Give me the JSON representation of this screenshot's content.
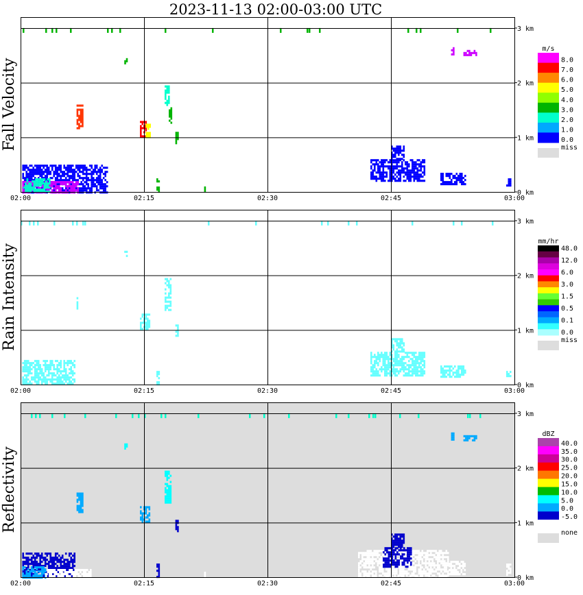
{
  "chart_data": {
    "type": "heatmap",
    "title": "2023-11-13  02:00-03:00 UTC",
    "x_axis": {
      "range": [
        "02:00",
        "03:00"
      ],
      "ticks": [
        "02:00",
        "02:15",
        "02:30",
        "02:45",
        "03:00"
      ]
    },
    "y_axis": {
      "range_km": [
        0,
        3.2
      ],
      "ticks": [
        "0 km",
        "1 km",
        "2 km",
        "3 km"
      ]
    },
    "panels": [
      {
        "name": "fall-velocity",
        "ylabel": "Fall Velocity",
        "unit": "m/s",
        "background": "#ffffff",
        "colorbar": [
          {
            "label": "8.0",
            "color": "#ff00ff"
          },
          {
            "label": "7.0",
            "color": "#ff0000"
          },
          {
            "label": "6.0",
            "color": "#ff8800"
          },
          {
            "label": "5.0",
            "color": "#ffff00"
          },
          {
            "label": "4.0",
            "color": "#90ff00"
          },
          {
            "label": "3.0",
            "color": "#00b400"
          },
          {
            "label": "2.0",
            "color": "#00ffcc"
          },
          {
            "label": "1.0",
            "color": "#00a8ff"
          },
          {
            "label": "0.0",
            "color": "#0000ff"
          }
        ],
        "miss_label": "miss",
        "echoes": [
          {
            "t0": 0.2,
            "t1": 10.6,
            "h0": 0.0,
            "h1": 0.5,
            "color": "#0000ff"
          },
          {
            "t0": 0.2,
            "t1": 7.0,
            "h0": 0.0,
            "h1": 0.2,
            "color": "#cc00ff"
          },
          {
            "t0": 0.3,
            "t1": 3.5,
            "h0": 0.0,
            "h1": 0.25,
            "color": "#00ffcc"
          },
          {
            "t0": 6.8,
            "t1": 7.5,
            "h0": 1.15,
            "h1": 1.6,
            "color": "#ff3300"
          },
          {
            "t0": 12.6,
            "t1": 12.9,
            "h0": 2.35,
            "h1": 2.45,
            "color": "#00b400"
          },
          {
            "t0": 14.5,
            "t1": 15.2,
            "h0": 1.0,
            "h1": 1.3,
            "color": "#ff0000"
          },
          {
            "t0": 15.2,
            "t1": 15.8,
            "h0": 1.0,
            "h1": 1.25,
            "color": "#ffff00"
          },
          {
            "t0": 16.5,
            "t1": 16.8,
            "h0": 0.0,
            "h1": 0.25,
            "color": "#00b400"
          },
          {
            "t0": 17.5,
            "t1": 18.1,
            "h0": 1.6,
            "h1": 1.95,
            "color": "#00ffcc"
          },
          {
            "t0": 18.0,
            "t1": 18.3,
            "h0": 1.25,
            "h1": 1.55,
            "color": "#00b400"
          },
          {
            "t0": 18.8,
            "t1": 19.1,
            "h0": 0.9,
            "h1": 1.1,
            "color": "#00b400"
          },
          {
            "t0": 22.3,
            "t1": 22.5,
            "h0": 0.0,
            "h1": 0.1,
            "color": "#00b400"
          },
          {
            "t0": 42.5,
            "t1": 49.0,
            "h0": 0.2,
            "h1": 0.6,
            "color": "#0000ff"
          },
          {
            "t0": 45.0,
            "t1": 46.5,
            "h0": 0.6,
            "h1": 0.85,
            "color": "#0000ff"
          },
          {
            "t0": 51.0,
            "t1": 54.0,
            "h0": 0.15,
            "h1": 0.35,
            "color": "#0000ff"
          },
          {
            "t0": 59.0,
            "t1": 59.6,
            "h0": 0.1,
            "h1": 0.25,
            "color": "#0000ff"
          },
          {
            "t0": 52.3,
            "t1": 52.6,
            "h0": 2.5,
            "h1": 2.65,
            "color": "#cc00ff"
          },
          {
            "t0": 53.8,
            "t1": 55.3,
            "h0": 2.5,
            "h1": 2.6,
            "color": "#cc00ff"
          },
          {
            "t0": 0.0,
            "t1": 60.0,
            "h0": 2.95,
            "h1": 3.0,
            "color": "#00b400",
            "sparse": true
          }
        ]
      },
      {
        "name": "rain-intensity",
        "ylabel": "Rain Intensity",
        "unit": "mm/hr",
        "background": "#ffffff",
        "colorbar": [
          {
            "label": "48.0",
            "color": "#000000"
          },
          {
            "label": "",
            "color": "#660044"
          },
          {
            "label": "12.0",
            "color": "#aa00aa"
          },
          {
            "label": "",
            "color": "#dd00dd"
          },
          {
            "label": "6.0",
            "color": "#ff00ff"
          },
          {
            "label": "",
            "color": "#ff0000"
          },
          {
            "label": "3.0",
            "color": "#ff8800"
          },
          {
            "label": "",
            "color": "#ffff00"
          },
          {
            "label": "1.5",
            "color": "#66ff33"
          },
          {
            "label": "",
            "color": "#33cc00"
          },
          {
            "label": "0.5",
            "color": "#0000ff"
          },
          {
            "label": "",
            "color": "#0066ff"
          },
          {
            "label": "0.1",
            "color": "#00aaff"
          },
          {
            "label": "",
            "color": "#33ffff"
          },
          {
            "label": "0.0",
            "color": "#aaffff"
          }
        ],
        "miss_label": "miss",
        "echoes": [
          {
            "t0": 0.2,
            "t1": 6.5,
            "h0": 0.0,
            "h1": 0.45,
            "color": "#66ffff"
          },
          {
            "t0": 6.8,
            "t1": 7.0,
            "h0": 1.4,
            "h1": 1.6,
            "color": "#66ffff"
          },
          {
            "t0": 12.6,
            "t1": 12.9,
            "h0": 2.35,
            "h1": 2.45,
            "color": "#66ffff"
          },
          {
            "t0": 14.5,
            "t1": 15.6,
            "h0": 1.0,
            "h1": 1.3,
            "color": "#66ffff"
          },
          {
            "t0": 16.5,
            "t1": 16.8,
            "h0": 0.0,
            "h1": 0.25,
            "color": "#66ffff"
          },
          {
            "t0": 17.5,
            "t1": 18.3,
            "h0": 1.35,
            "h1": 1.95,
            "color": "#66ffff"
          },
          {
            "t0": 18.8,
            "t1": 19.1,
            "h0": 0.9,
            "h1": 1.1,
            "color": "#66ffff"
          },
          {
            "t0": 42.5,
            "t1": 49.0,
            "h0": 0.15,
            "h1": 0.6,
            "color": "#66ffff"
          },
          {
            "t0": 45.0,
            "t1": 46.5,
            "h0": 0.6,
            "h1": 0.85,
            "color": "#66ffff"
          },
          {
            "t0": 51.0,
            "t1": 54.0,
            "h0": 0.15,
            "h1": 0.35,
            "color": "#66ffff"
          },
          {
            "t0": 59.0,
            "t1": 59.6,
            "h0": 0.1,
            "h1": 0.25,
            "color": "#66ffff"
          },
          {
            "t0": 0.0,
            "t1": 60.0,
            "h0": 2.95,
            "h1": 3.0,
            "color": "#66ffff",
            "sparse": true
          }
        ]
      },
      {
        "name": "reflectivity",
        "ylabel": "Reflectivity",
        "unit": "dBZ",
        "background": "#dddddd",
        "colorbar": [
          {
            "label": "40.0",
            "color": "#aa44aa"
          },
          {
            "label": "35.0",
            "color": "#ff00ff"
          },
          {
            "label": "30.0",
            "color": "#cc0099"
          },
          {
            "label": "25.0",
            "color": "#ff0000"
          },
          {
            "label": "20.0",
            "color": "#ff7700"
          },
          {
            "label": "15.0",
            "color": "#ffff00"
          },
          {
            "label": "10.0",
            "color": "#00bb00"
          },
          {
            "label": "5.0",
            "color": "#00ffff"
          },
          {
            "label": "0.0",
            "color": "#00aaff"
          },
          {
            "label": "-5.0",
            "color": "#0000cc"
          },
          {
            "label": "",
            "color": "#ffffff"
          }
        ],
        "miss_label": "none",
        "echoes": [
          {
            "t0": 0.2,
            "t1": 6.5,
            "h0": 0.0,
            "h1": 0.45,
            "color": "#0000cc"
          },
          {
            "t0": 0.2,
            "t1": 3.0,
            "h0": 0.0,
            "h1": 0.2,
            "color": "#00aaff"
          },
          {
            "t0": 3.0,
            "t1": 8.5,
            "h0": 0.0,
            "h1": 0.15,
            "color": "#ffffff"
          },
          {
            "t0": 6.8,
            "t1": 7.5,
            "h0": 1.2,
            "h1": 1.55,
            "color": "#00aaff"
          },
          {
            "t0": 12.6,
            "t1": 12.9,
            "h0": 2.35,
            "h1": 2.45,
            "color": "#00ffff"
          },
          {
            "t0": 14.5,
            "t1": 15.6,
            "h0": 1.0,
            "h1": 1.3,
            "color": "#00aaff"
          },
          {
            "t0": 16.5,
            "t1": 16.8,
            "h0": 0.0,
            "h1": 0.25,
            "color": "#0000cc"
          },
          {
            "t0": 17.5,
            "t1": 18.3,
            "h0": 1.35,
            "h1": 1.95,
            "color": "#00ffff"
          },
          {
            "t0": 18.8,
            "t1": 19.1,
            "h0": 0.85,
            "h1": 1.05,
            "color": "#0000cc"
          },
          {
            "t0": 22.3,
            "t1": 22.5,
            "h0": 0.0,
            "h1": 0.1,
            "color": "#ffffff"
          },
          {
            "t0": 41.0,
            "t1": 52.0,
            "h0": 0.0,
            "h1": 0.5,
            "color": "#ffffff"
          },
          {
            "t0": 44.0,
            "t1": 47.5,
            "h0": 0.2,
            "h1": 0.55,
            "color": "#0000cc"
          },
          {
            "t0": 45.0,
            "t1": 46.5,
            "h0": 0.55,
            "h1": 0.8,
            "color": "#0000cc"
          },
          {
            "t0": 52.0,
            "t1": 54.0,
            "h0": 0.05,
            "h1": 0.3,
            "color": "#ffffff"
          },
          {
            "t0": 59.0,
            "t1": 59.6,
            "h0": 0.05,
            "h1": 0.25,
            "color": "#ffffff"
          },
          {
            "t0": 52.3,
            "t1": 52.6,
            "h0": 2.5,
            "h1": 2.65,
            "color": "#00aaff"
          },
          {
            "t0": 53.8,
            "t1": 55.3,
            "h0": 2.5,
            "h1": 2.6,
            "color": "#00aaff"
          },
          {
            "t0": 0.0,
            "t1": 60.0,
            "h0": 2.95,
            "h1": 3.0,
            "color": "#00ffcc",
            "sparse": true
          }
        ]
      }
    ]
  }
}
